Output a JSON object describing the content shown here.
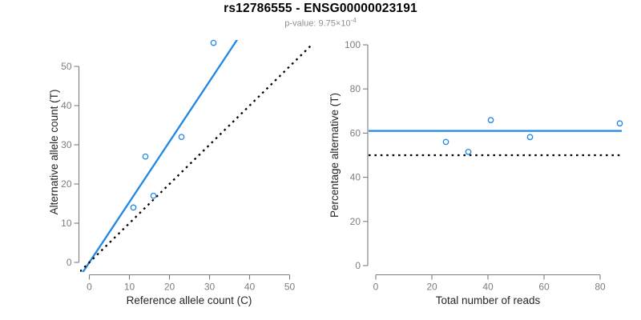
{
  "header": {
    "title": "rs12786555 - ENSG00000023191",
    "subtitle_base": "p-value: 9.75×10",
    "subtitle_exponent": "-4"
  },
  "colors": {
    "accent_blue": "#1f87e5",
    "dotted_black": "#000000",
    "axis": "#7d7d7d",
    "tick_label": "#7d7d7d",
    "axis_title": "#262626",
    "title": "#000000",
    "subtitle": "#8f8f8f",
    "background": "#ffffff"
  },
  "chart_data": [
    {
      "type": "scatter",
      "panel": "left",
      "xlabel": "Reference allele count (C)",
      "ylabel": "Alternative allele count (T)",
      "x_axis": {
        "ticks": [
          0,
          10,
          20,
          30,
          40,
          50
        ],
        "range": [
          0,
          50
        ]
      },
      "y_axis": {
        "ticks": [
          0,
          10,
          20,
          30,
          40,
          50
        ],
        "range": [
          0,
          56
        ]
      },
      "points": [
        [
          11,
          14
        ],
        [
          14,
          27
        ],
        [
          16,
          17
        ],
        [
          23,
          32
        ],
        [
          31,
          56
        ]
      ],
      "lines": [
        {
          "name": "fit",
          "slope": 1.54,
          "intercept": 0,
          "style": "solid",
          "color": "#1f87e5"
        },
        {
          "name": "identity",
          "slope": 1,
          "intercept": 0,
          "style": "dotted",
          "color": "#000000"
        }
      ],
      "grid": false,
      "legend": false
    },
    {
      "type": "scatter",
      "panel": "right",
      "xlabel": "Total number of reads",
      "ylabel": "Percentage alternative (T)",
      "x_axis": {
        "ticks": [
          0,
          20,
          40,
          60,
          80
        ],
        "range": [
          0,
          87
        ]
      },
      "y_axis": {
        "ticks": [
          0,
          20,
          40,
          60,
          80,
          100
        ],
        "range": [
          0,
          100
        ]
      },
      "points": [
        [
          25,
          56
        ],
        [
          33,
          51.5
        ],
        [
          41,
          65.9
        ],
        [
          55,
          58.2
        ],
        [
          87,
          64.4
        ]
      ],
      "lines": [
        {
          "name": "mean",
          "y": 61,
          "style": "solid",
          "color": "#1f87e5"
        },
        {
          "name": "null",
          "y": 50,
          "style": "dotted",
          "color": "#000000"
        }
      ],
      "grid": false,
      "legend": false
    }
  ]
}
